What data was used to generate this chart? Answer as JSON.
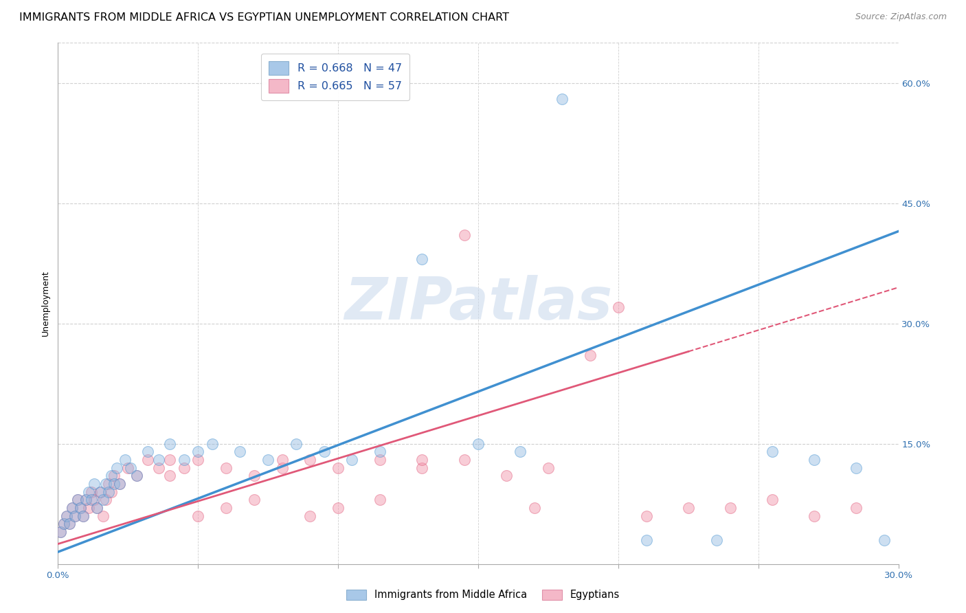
{
  "title": "IMMIGRANTS FROM MIDDLE AFRICA VS EGYPTIAN UNEMPLOYMENT CORRELATION CHART",
  "source": "Source: ZipAtlas.com",
  "ylabel": "Unemployment",
  "legend_label1": "R = 0.668   N = 47",
  "legend_label2": "R = 0.665   N = 57",
  "legend_color1": "#a8c8e8",
  "legend_color2": "#f4b8c8",
  "scatter_color_blue": "#90b8e0",
  "scatter_color_pink": "#f090a8",
  "line_color_blue": "#4090d0",
  "line_color_pink": "#e05878",
  "watermark_text": "ZIPatlas",
  "blue_scatter_x": [
    0.001,
    0.002,
    0.003,
    0.004,
    0.005,
    0.006,
    0.007,
    0.008,
    0.009,
    0.01,
    0.011,
    0.012,
    0.013,
    0.014,
    0.015,
    0.016,
    0.017,
    0.018,
    0.019,
    0.02,
    0.021,
    0.022,
    0.024,
    0.026,
    0.028,
    0.032,
    0.036,
    0.04,
    0.045,
    0.05,
    0.055,
    0.065,
    0.075,
    0.085,
    0.095,
    0.105,
    0.115,
    0.13,
    0.15,
    0.165,
    0.18,
    0.21,
    0.235,
    0.255,
    0.27,
    0.285,
    0.295
  ],
  "blue_scatter_y": [
    0.04,
    0.05,
    0.06,
    0.05,
    0.07,
    0.06,
    0.08,
    0.07,
    0.06,
    0.08,
    0.09,
    0.08,
    0.1,
    0.07,
    0.09,
    0.08,
    0.1,
    0.09,
    0.11,
    0.1,
    0.12,
    0.1,
    0.13,
    0.12,
    0.11,
    0.14,
    0.13,
    0.15,
    0.13,
    0.14,
    0.15,
    0.14,
    0.13,
    0.15,
    0.14,
    0.13,
    0.14,
    0.38,
    0.15,
    0.14,
    0.58,
    0.03,
    0.03,
    0.14,
    0.13,
    0.12,
    0.03
  ],
  "pink_scatter_x": [
    0.001,
    0.002,
    0.003,
    0.004,
    0.005,
    0.006,
    0.007,
    0.008,
    0.009,
    0.01,
    0.011,
    0.012,
    0.013,
    0.014,
    0.015,
    0.016,
    0.017,
    0.018,
    0.019,
    0.02,
    0.022,
    0.025,
    0.028,
    0.032,
    0.036,
    0.04,
    0.045,
    0.05,
    0.06,
    0.07,
    0.08,
    0.09,
    0.1,
    0.115,
    0.13,
    0.145,
    0.16,
    0.175,
    0.19,
    0.21,
    0.225,
    0.24,
    0.255,
    0.27,
    0.285,
    0.04,
    0.05,
    0.06,
    0.07,
    0.08,
    0.09,
    0.1,
    0.115,
    0.13,
    0.145,
    0.17,
    0.2
  ],
  "pink_scatter_y": [
    0.04,
    0.05,
    0.06,
    0.05,
    0.07,
    0.06,
    0.08,
    0.07,
    0.06,
    0.08,
    0.07,
    0.09,
    0.08,
    0.07,
    0.09,
    0.06,
    0.08,
    0.1,
    0.09,
    0.11,
    0.1,
    0.12,
    0.11,
    0.13,
    0.12,
    0.11,
    0.12,
    0.13,
    0.12,
    0.11,
    0.12,
    0.13,
    0.12,
    0.13,
    0.12,
    0.13,
    0.11,
    0.12,
    0.26,
    0.06,
    0.07,
    0.07,
    0.08,
    0.06,
    0.07,
    0.13,
    0.06,
    0.07,
    0.08,
    0.13,
    0.06,
    0.07,
    0.08,
    0.13,
    0.41,
    0.07,
    0.32
  ],
  "blue_line_x": [
    0.0,
    0.3
  ],
  "blue_line_y": [
    0.015,
    0.415
  ],
  "pink_line_x": [
    0.0,
    0.225
  ],
  "pink_line_y": [
    0.025,
    0.265
  ],
  "pink_ext_line_x": [
    0.225,
    0.3
  ],
  "pink_ext_line_y": [
    0.265,
    0.345
  ],
  "xlim": [
    0.0,
    0.3
  ],
  "ylim": [
    0.0,
    0.65
  ],
  "xticks": [
    0.0,
    0.05,
    0.1,
    0.15,
    0.2,
    0.25,
    0.3
  ],
  "yticks": [
    0.0,
    0.15,
    0.3,
    0.45,
    0.6
  ],
  "right_ytick_labels": [
    "",
    "15.0%",
    "30.0%",
    "45.0%",
    "60.0%"
  ],
  "xtick_labels": [
    "0.0%",
    "",
    "",
    "",
    "",
    "",
    "30.0%"
  ],
  "bottom_legend_labels": [
    "Immigrants from Middle Africa",
    "Egyptians"
  ],
  "title_fontsize": 11.5,
  "source_fontsize": 9,
  "axis_label_fontsize": 9,
  "tick_fontsize": 9.5,
  "bg_color": "#ffffff",
  "grid_color": "#d0d0d0"
}
